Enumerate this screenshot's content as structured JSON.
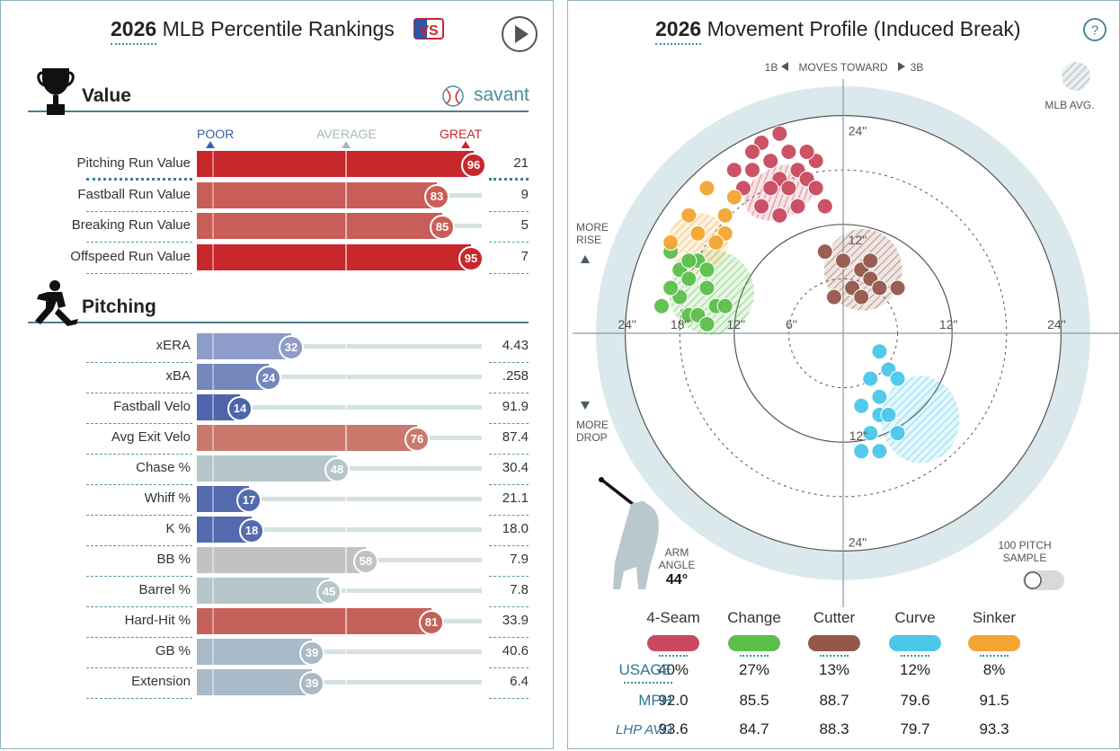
{
  "left": {
    "title_year": "2026",
    "title_text": "MLB Percentile Rankings",
    "value_section": "Value",
    "pitching_section": "Pitching",
    "savant_label": "savant",
    "scale": {
      "poor": "POOR",
      "average": "AVERAGE",
      "great": "GREAT"
    },
    "value_rows": [
      {
        "name": "Pitching Run Value",
        "pct": "96",
        "value": "21",
        "color": "#c8282c"
      },
      {
        "name": "Fastball Run Value",
        "pct": "83",
        "value": "9",
        "color": "#c95d58"
      },
      {
        "name": "Breaking Run Value",
        "pct": "85",
        "value": "5",
        "color": "#c95d58"
      },
      {
        "name": "Offspeed Run Value",
        "pct": "95",
        "value": "7",
        "color": "#c8282c"
      }
    ],
    "pitching_rows": [
      {
        "name": "xERA",
        "pct": "32",
        "value": "4.43",
        "color": "#8d9cc8"
      },
      {
        "name": "xBA",
        "pct": "24",
        "value": ".258",
        "color": "#7487bd"
      },
      {
        "name": "Fastball Velo",
        "pct": "14",
        "value": "91.9",
        "color": "#4e64ab"
      },
      {
        "name": "Avg Exit Velo",
        "pct": "76",
        "value": "87.4",
        "color": "#c97a6d"
      },
      {
        "name": "Chase %",
        "pct": "48",
        "value": "30.4",
        "color": "#b6c6ca"
      },
      {
        "name": "Whiff %",
        "pct": "17",
        "value": "21.1",
        "color": "#546aae"
      },
      {
        "name": "K %",
        "pct": "18",
        "value": "18.0",
        "color": "#546aae"
      },
      {
        "name": "BB %",
        "pct": "58",
        "value": "7.9",
        "color": "#c2c2c2"
      },
      {
        "name": "Barrel %",
        "pct": "45",
        "value": "7.8",
        "color": "#b6c6ca"
      },
      {
        "name": "Hard-Hit %",
        "pct": "81",
        "value": "33.9",
        "color": "#c4625a"
      },
      {
        "name": "GB %",
        "pct": "39",
        "value": "40.6",
        "color": "#a9bac8"
      },
      {
        "name": "Extension",
        "pct": "39",
        "value": "6.4",
        "color": "#a9bac8"
      }
    ]
  },
  "right": {
    "title_year": "2026",
    "title_text": "Movement Profile (Induced Break)",
    "direction": {
      "left": "1B",
      "mid": "MOVES TOWARD",
      "right": "3B"
    },
    "mlb_avg": "MLB AVG.",
    "more_rise": [
      "MORE",
      "RISE"
    ],
    "more_drop": [
      "MORE",
      "DROP"
    ],
    "ring_labels": [
      "24\"",
      "18\"",
      "12\"",
      "6\"",
      "12\"",
      "24\"",
      "24\"",
      "12\"",
      "12\"",
      "24\""
    ],
    "arm_angle_label": [
      "ARM",
      "ANGLE"
    ],
    "arm_angle_value": "44°",
    "sample_label": [
      "100 PITCH",
      "SAMPLE"
    ],
    "pitches": [
      {
        "name": "4-Seam",
        "color": "#c94a5e",
        "usage": "40%",
        "mph": "92.0",
        "lhp": "93.6"
      },
      {
        "name": "Change",
        "color": "#5cbf4c",
        "usage": "27%",
        "mph": "85.5",
        "lhp": "84.7"
      },
      {
        "name": "Cutter",
        "color": "#94574a",
        "usage": "13%",
        "mph": "88.7",
        "lhp": "88.3"
      },
      {
        "name": "Curve",
        "color": "#4bc7ea",
        "usage": "12%",
        "mph": "79.6",
        "lhp": "79.7"
      },
      {
        "name": "Sinker",
        "color": "#f2a530",
        "usage": "8%",
        "mph": "91.5",
        "lhp": "93.3"
      }
    ],
    "row_labels": {
      "usage": "USAGE",
      "mph": "MPH",
      "lhp": "LHP AVG"
    },
    "movement_data": {
      "4-Seam": [
        [
          -9,
          21
        ],
        [
          -8,
          19
        ],
        [
          -7,
          17
        ],
        [
          -10,
          18
        ],
        [
          -6,
          20
        ],
        [
          -5,
          18
        ],
        [
          -8,
          16
        ],
        [
          -11,
          16
        ],
        [
          -6,
          16
        ],
        [
          -7,
          13
        ],
        [
          -5,
          14
        ],
        [
          -4,
          17
        ],
        [
          -3,
          19
        ],
        [
          -2,
          14
        ],
        [
          -9,
          14
        ],
        [
          -12,
          18
        ],
        [
          -10,
          20
        ],
        [
          -7,
          22
        ],
        [
          -4,
          20
        ],
        [
          -3,
          16
        ]
      ],
      "Change": [
        [
          -19,
          9
        ],
        [
          -18,
          7
        ],
        [
          -17,
          6
        ],
        [
          -16,
          8
        ],
        [
          -15,
          5
        ],
        [
          -14,
          3
        ],
        [
          -18,
          4
        ],
        [
          -17,
          2
        ],
        [
          -16,
          2
        ],
        [
          -15,
          7
        ],
        [
          -19,
          5
        ],
        [
          -20,
          3
        ],
        [
          -13,
          3
        ],
        [
          -15,
          1
        ],
        [
          -17,
          8
        ]
      ],
      "Cutter": [
        [
          -2,
          9
        ],
        [
          0,
          8
        ],
        [
          2,
          7
        ],
        [
          3,
          6
        ],
        [
          4,
          5
        ],
        [
          1,
          5
        ],
        [
          -1,
          4
        ],
        [
          2,
          4
        ],
        [
          6,
          5
        ],
        [
          3,
          8
        ]
      ],
      "Curve": [
        [
          4,
          -2
        ],
        [
          5,
          -4
        ],
        [
          3,
          -5
        ],
        [
          4,
          -7
        ],
        [
          2,
          -8
        ],
        [
          4,
          -9
        ],
        [
          3,
          -11
        ],
        [
          2,
          -13
        ],
        [
          4,
          -13
        ],
        [
          6,
          -5
        ],
        [
          5,
          -9
        ],
        [
          6,
          -11
        ]
      ],
      "Sinker": [
        [
          -15,
          16
        ],
        [
          -12,
          15
        ],
        [
          -13,
          13
        ],
        [
          -13,
          11
        ],
        [
          -17,
          13
        ],
        [
          -14,
          10
        ],
        [
          -16,
          11
        ],
        [
          -19,
          10
        ]
      ]
    }
  }
}
